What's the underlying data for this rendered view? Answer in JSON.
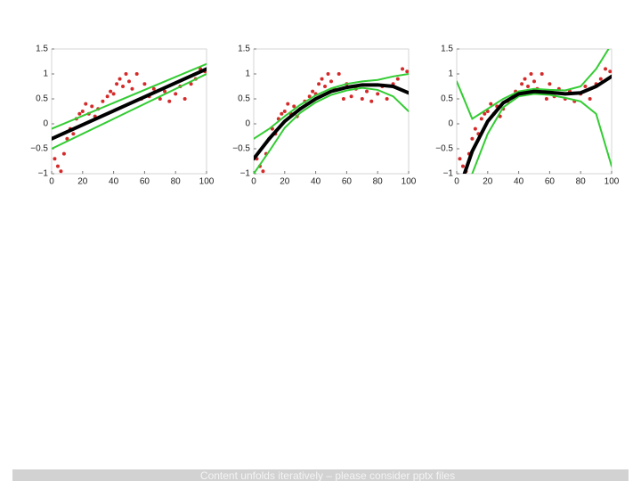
{
  "chart_data": [
    {
      "type": "scatter",
      "color": "#d42a2a",
      "x": [
        2,
        4,
        6,
        8,
        10,
        12,
        14,
        16,
        18,
        20,
        22,
        24,
        26,
        28,
        30,
        33,
        36,
        38,
        40,
        42,
        44,
        46,
        48,
        50,
        52,
        55,
        58,
        60,
        63,
        66,
        70,
        73,
        76,
        80,
        83,
        86,
        90,
        93,
        96,
        99
      ],
      "values": [
        -0.7,
        -0.85,
        -0.95,
        -0.6,
        -0.3,
        -0.1,
        -0.2,
        0.1,
        0.2,
        0.25,
        0.4,
        0.2,
        0.35,
        0.15,
        0.3,
        0.45,
        0.55,
        0.65,
        0.6,
        0.8,
        0.9,
        0.75,
        1.0,
        0.85,
        0.7,
        1.0,
        0.5,
        0.8,
        0.55,
        0.7,
        0.5,
        0.65,
        0.45,
        0.6,
        0.75,
        0.5,
        0.8,
        0.9,
        1.1,
        1.05
      ],
      "lines": [
        {
          "color": "#33cc33",
          "x": [
            0,
            100
          ],
          "values": [
            -0.1,
            1.2
          ]
        },
        {
          "color": "#33cc33",
          "x": [
            0,
            100
          ],
          "values": [
            -0.5,
            1.0
          ]
        },
        {
          "color": "#000000",
          "x": [
            0,
            100
          ],
          "values": [
            -0.3,
            1.1
          ]
        }
      ],
      "xlim": [
        0,
        100
      ],
      "ylim": [
        -1,
        1.5
      ],
      "xticks": [
        0,
        20,
        40,
        60,
        80,
        100
      ],
      "yticks": [
        {
          "value": -1,
          "label": "−1"
        },
        {
          "value": -0.5,
          "label": "−0.5"
        },
        0,
        0.5,
        1,
        1.5
      ]
    },
    {
      "type": "scatter",
      "color": "#d42a2a",
      "x": [
        2,
        4,
        6,
        8,
        10,
        12,
        14,
        16,
        18,
        20,
        22,
        24,
        26,
        28,
        30,
        33,
        36,
        38,
        40,
        42,
        44,
        46,
        48,
        50,
        52,
        55,
        58,
        60,
        63,
        66,
        70,
        73,
        76,
        80,
        83,
        86,
        90,
        93,
        96,
        99
      ],
      "values": [
        -0.7,
        -0.85,
        -0.95,
        -0.6,
        -0.3,
        -0.1,
        -0.2,
        0.1,
        0.2,
        0.25,
        0.4,
        0.2,
        0.35,
        0.15,
        0.3,
        0.45,
        0.55,
        0.65,
        0.6,
        0.8,
        0.9,
        0.75,
        1.0,
        0.85,
        0.7,
        1.0,
        0.5,
        0.8,
        0.55,
        0.7,
        0.5,
        0.65,
        0.45,
        0.6,
        0.75,
        0.5,
        0.8,
        0.9,
        1.1,
        1.05
      ],
      "lines": [
        {
          "color": "#33cc33",
          "x": [
            0,
            10,
            20,
            30,
            40,
            50,
            60,
            70,
            80,
            90,
            100
          ],
          "values": [
            -0.3,
            -0.1,
            0.15,
            0.38,
            0.57,
            0.71,
            0.8,
            0.85,
            0.88,
            0.95,
            1.0
          ]
        },
        {
          "color": "#33cc33",
          "x": [
            0,
            10,
            20,
            30,
            40,
            50,
            60,
            70,
            80,
            90,
            100
          ],
          "values": [
            -1.0,
            -0.55,
            -0.08,
            0.22,
            0.43,
            0.58,
            0.67,
            0.72,
            0.68,
            0.55,
            0.25
          ]
        },
        {
          "color": "#000000",
          "x": [
            0,
            10,
            20,
            30,
            40,
            50,
            60,
            70,
            80,
            90,
            100
          ],
          "values": [
            -0.7,
            -0.3,
            0.05,
            0.3,
            0.5,
            0.65,
            0.73,
            0.78,
            0.78,
            0.75,
            0.62
          ]
        }
      ],
      "xlim": [
        0,
        100
      ],
      "ylim": [
        -1,
        1.5
      ],
      "xticks": [
        0,
        20,
        40,
        60,
        80,
        100
      ],
      "yticks": [
        {
          "value": -1,
          "label": "−1"
        },
        {
          "value": -0.5,
          "label": "−0.5"
        },
        0,
        0.5,
        1,
        1.5
      ]
    },
    {
      "type": "scatter",
      "color": "#d42a2a",
      "x": [
        2,
        4,
        6,
        8,
        10,
        12,
        14,
        16,
        18,
        20,
        22,
        24,
        26,
        28,
        30,
        33,
        36,
        38,
        40,
        42,
        44,
        46,
        48,
        50,
        52,
        55,
        58,
        60,
        63,
        66,
        70,
        73,
        76,
        80,
        83,
        86,
        90,
        93,
        96,
        99
      ],
      "values": [
        -0.7,
        -0.85,
        -0.95,
        -0.6,
        -0.3,
        -0.1,
        -0.2,
        0.1,
        0.2,
        0.25,
        0.4,
        0.2,
        0.35,
        0.15,
        0.3,
        0.45,
        0.55,
        0.65,
        0.6,
        0.8,
        0.9,
        0.75,
        1.0,
        0.85,
        0.7,
        1.0,
        0.5,
        0.8,
        0.55,
        0.7,
        0.5,
        0.65,
        0.45,
        0.6,
        0.75,
        0.5,
        0.8,
        0.9,
        1.1,
        1.05
      ],
      "lines": [
        {
          "color": "#33cc33",
          "x": [
            0,
            10,
            20,
            30,
            40,
            50,
            60,
            70,
            80,
            90,
            100
          ],
          "values": [
            0.85,
            0.1,
            0.3,
            0.5,
            0.65,
            0.7,
            0.68,
            0.67,
            0.75,
            1.1,
            1.6
          ]
        },
        {
          "color": "#33cc33",
          "x": [
            10,
            20,
            30,
            40,
            50,
            60,
            70,
            80,
            90,
            100
          ],
          "values": [
            -1.0,
            -0.2,
            0.33,
            0.55,
            0.6,
            0.58,
            0.52,
            0.45,
            0.2,
            -0.85
          ]
        },
        {
          "color": "#000000",
          "x": [
            5,
            10,
            20,
            30,
            40,
            50,
            60,
            70,
            80,
            90,
            100
          ],
          "values": [
            -1.0,
            -0.55,
            0.05,
            0.42,
            0.6,
            0.65,
            0.63,
            0.6,
            0.62,
            0.75,
            0.95
          ]
        }
      ],
      "xlim": [
        0,
        100
      ],
      "ylim": [
        -1,
        1.5
      ],
      "xticks": [
        0,
        20,
        40,
        60,
        80,
        100
      ],
      "yticks": [
        {
          "value": -1,
          "label": "−1"
        },
        {
          "value": -0.5,
          "label": "−0.5"
        },
        0,
        0.5,
        1,
        1.5
      ]
    }
  ],
  "footer": "Content unfolds iteratively – please consider pptx files"
}
